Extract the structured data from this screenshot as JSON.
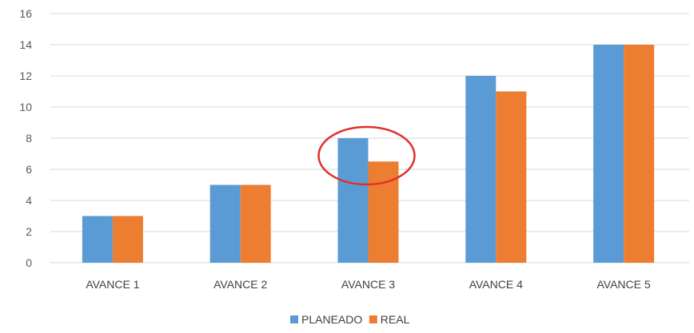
{
  "chart_data": {
    "type": "bar",
    "categories": [
      "AVANCE 1",
      "AVANCE 2",
      "AVANCE 3",
      "AVANCE 4",
      "AVANCE 5"
    ],
    "series": [
      {
        "name": "PLANEADO",
        "values": [
          3,
          5,
          8,
          12,
          14
        ],
        "color": "#5B9BD5"
      },
      {
        "name": "REAL",
        "values": [
          3,
          5,
          6.5,
          11,
          14
        ],
        "color": "#ED7D31"
      }
    ],
    "title": "",
    "xlabel": "",
    "ylabel": "",
    "ylim": [
      0,
      16
    ],
    "yticks": [
      0,
      2,
      4,
      6,
      8,
      10,
      12,
      14,
      16
    ],
    "grid": true,
    "legend_position": "bottom",
    "annotation": {
      "type": "ellipse",
      "category": "AVANCE 3",
      "color": "#E0312B"
    }
  }
}
